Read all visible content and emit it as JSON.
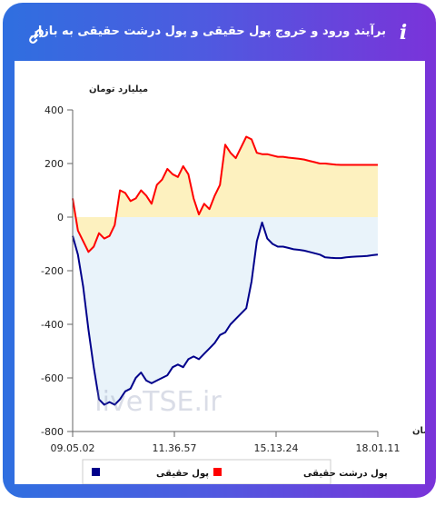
{
  "header": {
    "title": "برآیند ورود و خروج پول حقیقی و پول درشت حقیقی به بازار",
    "info_icon": "info-icon",
    "link_icon": "link-icon"
  },
  "colors": {
    "gradient_start": "#2f6fe0",
    "gradient_end": "#7a33d9",
    "red_line": "#ff0000",
    "red_fill": "#fdf1bf",
    "blue_line": "#00008b",
    "blue_fill": "#e9f3fa"
  },
  "watermark": "liveTSE.ir",
  "chart_data": {
    "type": "area",
    "ylabel": "میلیارد تومان",
    "xlabel": "زمان",
    "ylim": [
      -800,
      400
    ],
    "yticks": [
      400,
      200,
      0,
      -200,
      -400,
      -600,
      -800
    ],
    "xticks": [
      "09.05.02",
      "11.36.57",
      "15.13.24",
      "18.01.11"
    ],
    "legend_position": "bottom",
    "series": [
      {
        "name": "پول حقیقی",
        "color": "#00008b",
        "values": [
          -70,
          -140,
          -260,
          -420,
          -560,
          -680,
          -700,
          -690,
          -700,
          -680,
          -650,
          -640,
          -600,
          -580,
          -610,
          -620,
          -610,
          -600,
          -590,
          -560,
          -550,
          -560,
          -530,
          -520,
          -530,
          -510,
          -490,
          -470,
          -440,
          -430,
          -400,
          -380,
          -360,
          -340,
          -240,
          -90,
          -20,
          -80,
          -100,
          -110,
          -110,
          -115,
          -120,
          -122,
          -125,
          -130,
          -135,
          -140,
          -150,
          -152,
          -153,
          -153,
          -150,
          -148,
          -147,
          -146,
          -145,
          -142,
          -140
        ]
      },
      {
        "name": "پول درشت حقیقی",
        "color": "#ff0000",
        "values": [
          70,
          -50,
          -90,
          -130,
          -110,
          -60,
          -80,
          -70,
          -30,
          100,
          90,
          60,
          70,
          100,
          80,
          50,
          120,
          140,
          180,
          160,
          150,
          190,
          160,
          70,
          10,
          50,
          30,
          80,
          120,
          270,
          240,
          220,
          260,
          300,
          290,
          240,
          235,
          235,
          230,
          225,
          225,
          222,
          220,
          218,
          215,
          210,
          205,
          200,
          200,
          198,
          196,
          195,
          195,
          195,
          195,
          195,
          195,
          195,
          195
        ]
      }
    ]
  }
}
